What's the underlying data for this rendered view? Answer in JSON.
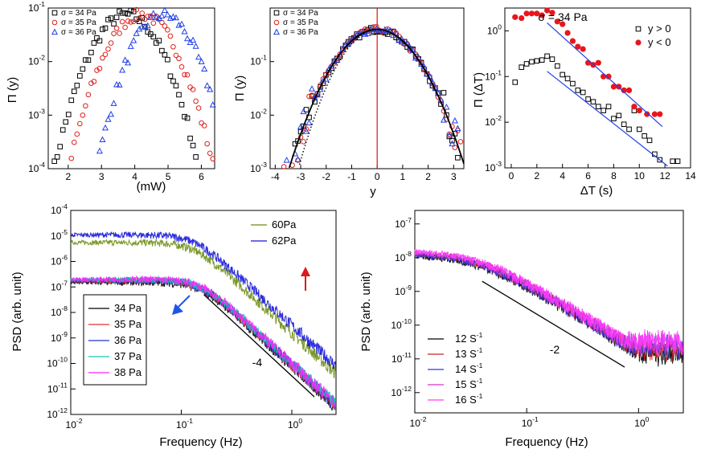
{
  "chart_data": [
    {
      "id": "a",
      "type": "scatter",
      "title": "",
      "xlabel": "(mW)",
      "ylabel": "Π (y)",
      "xscale": "linear",
      "yscale": "log",
      "xlim": [
        1.4,
        6.4
      ],
      "ylim_exp": [
        -4,
        -1
      ],
      "xticks": [
        "2",
        "3",
        "4",
        "5",
        "6"
      ],
      "legend_pos": "top-left",
      "series": [
        {
          "name": "σ = 34 Pa",
          "color": "#000000",
          "marker": "square",
          "mu": 3.75,
          "sigma": 0.6,
          "peak": 0.075
        },
        {
          "name": "σ = 35 Pa",
          "color": "#e0201b",
          "marker": "circle",
          "mu": 4.2,
          "sigma": 0.6,
          "peak": 0.075
        },
        {
          "name": "σ = 36 Pa",
          "color": "#1f3fe6",
          "marker": "triangle",
          "mu": 4.85,
          "sigma": 0.55,
          "peak": 0.075
        }
      ]
    },
    {
      "id": "b",
      "type": "scatter",
      "title": "",
      "xlabel": "y",
      "ylabel": "Π (y)",
      "xscale": "linear",
      "yscale": "log",
      "xlim": [
        -4.2,
        3.4
      ],
      "ylim_exp": [
        -3,
        0
      ],
      "xticks": [
        "-4",
        "-3",
        "-2",
        "-1",
        "0",
        "1",
        "2",
        "3"
      ],
      "legend_pos": "top-left",
      "vline_x": 0,
      "series": [
        {
          "name": "σ = 34 Pa",
          "color": "#000000",
          "marker": "square"
        },
        {
          "name": "σ = 35 Pa",
          "color": "#e0201b",
          "marker": "circle"
        },
        {
          "name": "σ = 36 Pa",
          "color": "#1f3fe6",
          "marker": "triangle"
        }
      ],
      "gaussian_peak": 0.4
    },
    {
      "id": "c",
      "type": "scatter",
      "title": "σ = 34 Pa",
      "xlabel": "ΔT (s)",
      "ylabel": "Π (ΔT)",
      "xscale": "linear",
      "yscale": "log",
      "xlim": [
        -0.5,
        14
      ],
      "ylim_exp": [
        -3,
        0.5
      ],
      "xticks": [
        "0",
        "2",
        "4",
        "6",
        "8",
        "10",
        "12",
        "14"
      ],
      "legend_pos": "top-right",
      "series": [
        {
          "name": "y > 0",
          "color": "#000000",
          "marker": "open-square",
          "x": [
            0.3,
            0.8,
            1.2,
            1.6,
            2.0,
            2.4,
            2.8,
            3.2,
            3.6,
            4.0,
            4.4,
            4.8,
            5.2,
            5.6,
            6.0,
            6.4,
            6.8,
            7.2,
            7.6,
            8.0,
            8.4,
            8.8,
            9.2,
            9.6,
            10.0,
            10.4,
            10.8,
            11.2,
            11.6,
            12.6,
            13.0
          ],
          "y": [
            0.075,
            0.16,
            0.19,
            0.21,
            0.22,
            0.23,
            0.28,
            0.24,
            0.17,
            0.11,
            0.09,
            0.07,
            0.05,
            0.045,
            0.032,
            0.028,
            0.022,
            0.018,
            0.022,
            0.012,
            0.014,
            0.009,
            0.007,
            0.018,
            0.007,
            0.005,
            0.004,
            0.002,
            0.0015,
            0.0014,
            0.0014
          ]
        },
        {
          "name": "y < 0",
          "color": "#e8161b",
          "marker": "filled-circle",
          "x": [
            0.3,
            0.8,
            1.2,
            1.6,
            2.0,
            2.4,
            2.8,
            3.2,
            3.6,
            4.0,
            4.4,
            4.8,
            5.2,
            5.6,
            6.0,
            6.4,
            6.8,
            7.2,
            7.6,
            8.0,
            8.4,
            8.8,
            9.2,
            9.6,
            10.0,
            10.6,
            11.2,
            11.6
          ],
          "y": [
            2.0,
            1.9,
            2.4,
            2.4,
            2.4,
            2.2,
            2.8,
            2.5,
            1.6,
            1.4,
            0.9,
            0.6,
            0.45,
            0.4,
            0.2,
            0.18,
            0.2,
            0.1,
            0.1,
            0.06,
            0.06,
            0.05,
            0.05,
            0.022,
            0.018,
            0.015,
            0.015,
            0.015
          ]
        }
      ],
      "fit_lines": [
        {
          "x": [
            2.8,
            11.8
          ],
          "y": [
            1.5,
            0.008
          ]
        },
        {
          "x": [
            2.8,
            12.2
          ],
          "y": [
            0.13,
            0.0011
          ]
        }
      ]
    },
    {
      "id": "d",
      "type": "line",
      "title": "",
      "xlabel": "Frequency (Hz)",
      "ylabel": "PSD (arb. unit)",
      "xscale": "log",
      "yscale": "log",
      "xlim_exp": [
        -2,
        0.4
      ],
      "ylim_exp": [
        -12,
        -4
      ],
      "xticks": [
        -2,
        -1,
        0
      ],
      "yticks": [
        -12,
        -11,
        -10,
        -9,
        -8,
        -7,
        -6,
        -5,
        -4
      ],
      "series": [
        {
          "name": "60Pa",
          "color": "#6b8e12",
          "plateau": 5.5e-06,
          "fc": 0.13,
          "slope": -4
        },
        {
          "name": "62Pa",
          "color": "#1515d8",
          "plateau": 1.1e-05,
          "fc": 0.13,
          "slope": -4
        },
        {
          "name": "34 Pa",
          "color": "#000000",
          "plateau": 1.5e-07,
          "fc": 0.15,
          "slope": -4
        },
        {
          "name": "35 Pa",
          "color": "#e03030",
          "plateau": 1.7e-07,
          "fc": 0.15,
          "slope": -4
        },
        {
          "name": "36 Pa",
          "color": "#2233d0",
          "plateau": 1.8e-07,
          "fc": 0.15,
          "slope": -4
        },
        {
          "name": "37 Pa",
          "color": "#12c4b4",
          "plateau": 1.9e-07,
          "fc": 0.15,
          "slope": -4
        },
        {
          "name": "38 Pa",
          "color": "#ff22ff",
          "plateau": 2e-07,
          "fc": 0.15,
          "slope": -4
        }
      ],
      "guide_slope_label": "-4",
      "guide_line": {
        "x": [
          0.16,
          1.6
        ],
        "y": [
          5e-08,
          4.9e-12
        ]
      }
    },
    {
      "id": "e",
      "type": "line",
      "title": "",
      "xlabel": "Frequency (Hz)",
      "ylabel": "PSD (arb. unit)",
      "xscale": "log",
      "yscale": "log",
      "xlim_exp": [
        -2,
        0.4
      ],
      "ylim_exp": [
        -12.6,
        -6.6
      ],
      "xticks": [
        -2,
        -1,
        0
      ],
      "yticks": [
        -12,
        -11,
        -10,
        -9,
        -8,
        -7
      ],
      "series": [
        {
          "name": "12 S-1",
          "label_base": "12 S",
          "label_exp": "-1",
          "color": "#000000",
          "plateau": 1.2e-08,
          "fc": 0.035,
          "slope": -2,
          "floor": 1.4e-11
        },
        {
          "name": "13 S-1",
          "label_base": "13 S",
          "label_exp": "-1",
          "color": "#d42020",
          "plateau": 1.4e-08,
          "fc": 0.035,
          "slope": -2,
          "floor": 2e-11
        },
        {
          "name": "14 S-1",
          "label_base": "14 S",
          "label_exp": "-1",
          "color": "#3535d8",
          "plateau": 1.3e-08,
          "fc": 0.035,
          "slope": -2,
          "floor": 2.5e-11
        },
        {
          "name": "15 S-1",
          "label_base": "15 S",
          "label_exp": "-1",
          "color": "#d436d4",
          "plateau": 1.5e-08,
          "fc": 0.035,
          "slope": -2,
          "floor": 3e-11
        },
        {
          "name": "16 S-1",
          "label_base": "16 S",
          "label_exp": "-1",
          "color": "#ff3aff",
          "plateau": 1.6e-08,
          "fc": 0.035,
          "slope": -2,
          "floor": 3.5e-11
        }
      ],
      "guide_slope_label": "-2",
      "guide_line": {
        "x": [
          0.04,
          0.75
        ],
        "y": [
          2e-09,
          5.7e-12
        ]
      }
    }
  ]
}
